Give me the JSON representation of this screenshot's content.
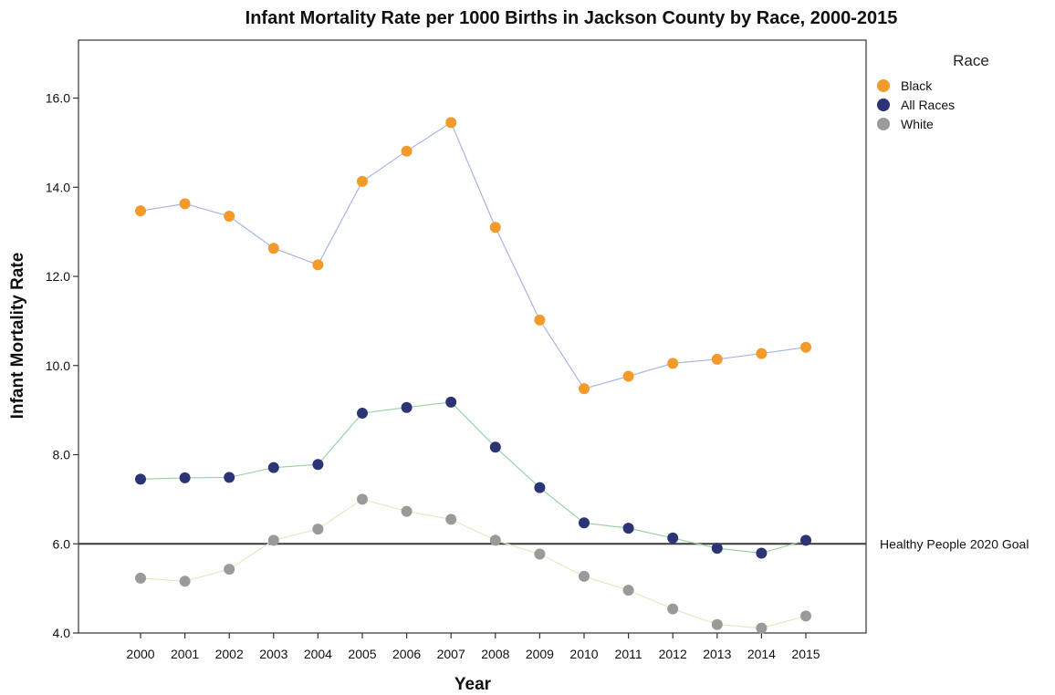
{
  "chart_data": {
    "type": "line",
    "title": "Infant Mortality Rate per 1000 Births in Jackson County by Race, 2000-2015",
    "xlabel": "Year",
    "ylabel": "Infant Mortality Rate",
    "x": [
      "2000",
      "2001",
      "2002",
      "2003",
      "2004",
      "2005",
      "2006",
      "2007",
      "2008",
      "2009",
      "2010",
      "2011",
      "2012",
      "2013",
      "2014",
      "2015"
    ],
    "ylim": [
      4.0,
      17.3
    ],
    "yticks": [
      "4.0",
      "6.0",
      "8.0",
      "10.0",
      "12.0",
      "14.0",
      "16.0"
    ],
    "legend": {
      "title": "Race",
      "position": "top-right"
    },
    "series": [
      {
        "name": "Black",
        "marker_color": "#F39A2B",
        "line_color": "#A9B6E0",
        "values": [
          13.47,
          13.63,
          13.35,
          12.63,
          12.26,
          14.13,
          14.81,
          15.45,
          13.1,
          11.02,
          9.48,
          9.76,
          10.05,
          10.14,
          10.27,
          10.41
        ]
      },
      {
        "name": "All Races",
        "marker_color": "#2B3474",
        "line_color": "#9BD3A6",
        "values": [
          7.45,
          7.48,
          7.49,
          7.71,
          7.78,
          8.93,
          9.06,
          9.18,
          8.17,
          7.26,
          6.47,
          6.35,
          6.13,
          5.9,
          5.79,
          6.08
        ]
      },
      {
        "name": "White",
        "marker_color": "#9A9A9A",
        "line_color": "#E6E9C4",
        "values": [
          5.23,
          5.16,
          5.43,
          6.08,
          6.33,
          7.0,
          6.73,
          6.55,
          6.08,
          5.77,
          5.27,
          4.96,
          4.54,
          4.19,
          4.11,
          4.38
        ]
      }
    ],
    "reference_line": {
      "value": 6.0,
      "label": "Healthy People 2020 Goal",
      "color": "#3A3A3A"
    },
    "grid": false
  }
}
